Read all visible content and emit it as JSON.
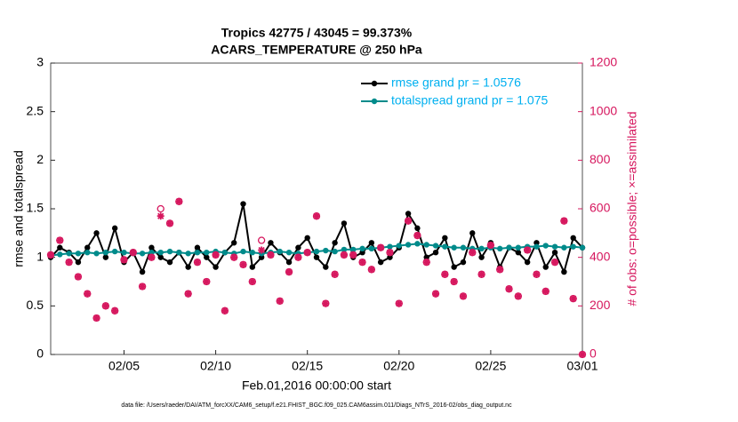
{
  "chart_data": {
    "type": "line",
    "title": "Tropics 42775 / 43045 = 99.373%",
    "subtitle": "ACARS_TEMPERATURE @ 250 hPa",
    "x_label": "Feb.01,2016 00:00:00 start",
    "y_label": "rmse and totalspread",
    "y2_label": "# of obs: o=possible; ×=assimilated",
    "footnote": "data file: /Users/raeder/DAI/ATM_forcXX/CAM6_setup/f.e21.FHIST_BGC.f09_025.CAM6assim.011/Diags_NTrS_2016-02/obs_diag_output.nc",
    "xlim": [
      1,
      30
    ],
    "xticks": [
      {
        "value": 5,
        "label": "02/05"
      },
      {
        "value": 10,
        "label": "02/10"
      },
      {
        "value": 15,
        "label": "02/15"
      },
      {
        "value": 20,
        "label": "02/20"
      },
      {
        "value": 25,
        "label": "02/25"
      },
      {
        "value": 30,
        "label": "03/01"
      }
    ],
    "ylim": [
      0,
      3
    ],
    "yticks": [
      0,
      0.5,
      1,
      1.5,
      2,
      2.5,
      3
    ],
    "y2lim": [
      0,
      1200
    ],
    "y2ticks": [
      0,
      200,
      400,
      600,
      800,
      1000,
      1200
    ],
    "x": [
      1,
      1.5,
      2,
      2.5,
      3,
      3.5,
      4,
      4.5,
      5,
      5.5,
      6,
      6.5,
      7,
      7.5,
      8,
      8.5,
      9,
      9.5,
      10,
      10.5,
      11,
      11.5,
      12,
      12.5,
      13,
      13.5,
      14,
      14.5,
      15,
      15.5,
      16,
      16.5,
      17,
      17.5,
      18,
      18.5,
      19,
      19.5,
      20,
      20.5,
      21,
      21.5,
      22,
      22.5,
      23,
      23.5,
      24,
      24.5,
      25,
      25.5,
      26,
      26.5,
      27,
      27.5,
      28,
      28.5,
      29,
      29.5,
      30
    ],
    "series": [
      {
        "name": "rmse grand pr = 1.0576",
        "color": "#000000",
        "marker": "dot",
        "values": [
          1.0,
          1.1,
          1.05,
          0.95,
          1.1,
          1.25,
          1.0,
          1.3,
          0.95,
          1.05,
          0.85,
          1.1,
          1.0,
          0.95,
          1.05,
          0.9,
          1.1,
          1.0,
          0.9,
          1.05,
          1.15,
          1.55,
          0.9,
          1.0,
          1.15,
          1.05,
          0.95,
          1.1,
          1.2,
          1.0,
          0.9,
          1.15,
          1.35,
          1.0,
          1.05,
          1.15,
          0.95,
          1.0,
          1.1,
          1.45,
          1.3,
          1.0,
          1.05,
          1.2,
          0.9,
          0.95,
          1.25,
          1.0,
          1.15,
          0.9,
          1.1,
          1.05,
          0.95,
          1.15,
          0.9,
          1.05,
          0.85,
          1.2,
          1.1
        ]
      },
      {
        "name": "totalspread grand pr = 1.075",
        "color": "#008b8b",
        "marker": "dot",
        "values": [
          1.02,
          1.03,
          1.04,
          1.04,
          1.05,
          1.04,
          1.05,
          1.06,
          1.05,
          1.04,
          1.04,
          1.05,
          1.05,
          1.06,
          1.05,
          1.04,
          1.05,
          1.05,
          1.06,
          1.05,
          1.04,
          1.06,
          1.05,
          1.04,
          1.05,
          1.06,
          1.05,
          1.04,
          1.05,
          1.06,
          1.07,
          1.06,
          1.08,
          1.08,
          1.09,
          1.09,
          1.1,
          1.11,
          1.12,
          1.13,
          1.14,
          1.13,
          1.12,
          1.11,
          1.1,
          1.1,
          1.09,
          1.09,
          1.1,
          1.09,
          1.1,
          1.1,
          1.11,
          1.11,
          1.12,
          1.11,
          1.1,
          1.11,
          1.1
        ]
      },
      {
        "color": "#d6175e",
        "marker": "circle",
        "axis": "y2",
        "values": [
          410,
          470,
          380,
          320,
          250,
          150,
          200,
          180,
          390,
          420,
          280,
          400,
          600,
          540,
          630,
          250,
          380,
          300,
          410,
          180,
          400,
          370,
          300,
          470,
          410,
          220,
          340,
          400,
          420,
          570,
          210,
          330,
          410,
          410,
          380,
          350,
          440,
          420,
          210,
          550,
          490,
          380,
          250,
          330,
          300,
          240,
          420,
          330,
          450,
          350,
          270,
          240,
          430,
          330,
          260,
          380,
          550,
          230,
          0
        ]
      },
      {
        "color": "#d6175e",
        "marker": "asterisk",
        "axis": "y2",
        "values": [
          410,
          470,
          380,
          320,
          250,
          150,
          200,
          180,
          390,
          420,
          280,
          400,
          570,
          540,
          630,
          250,
          380,
          300,
          410,
          180,
          400,
          370,
          300,
          430,
          410,
          220,
          340,
          400,
          420,
          570,
          210,
          330,
          410,
          410,
          380,
          350,
          440,
          420,
          210,
          550,
          490,
          380,
          250,
          330,
          300,
          240,
          420,
          330,
          450,
          350,
          270,
          240,
          430,
          330,
          260,
          380,
          550,
          230,
          0
        ]
      }
    ],
    "legend": "upper right",
    "grid": false
  }
}
